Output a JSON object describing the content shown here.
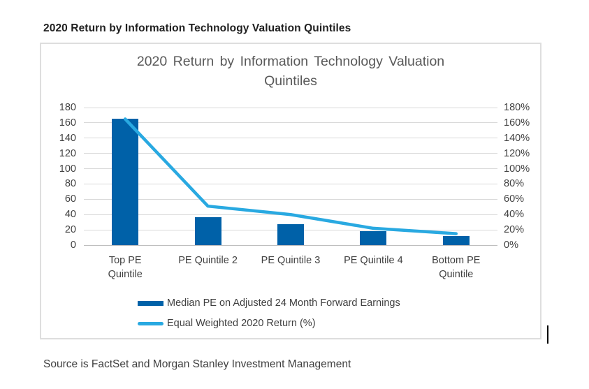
{
  "page": {
    "heading": "2020 Return by Information Technology Valuation Quintiles",
    "source_note": "Source is FactSet and Morgan Stanley Investment Management"
  },
  "chart_data": {
    "type": "bar-line-combo",
    "title": "2020 Return by Information Technology Valuation\nQuintiles",
    "categories": [
      "Top PE\nQuintile",
      "PE Quintile 2",
      "PE Quintile 3",
      "PE Quintile 4",
      "Bottom PE\nQuintile"
    ],
    "series": [
      {
        "name": "Median PE on Adjusted 24 Month Forward Earnings",
        "type": "bar",
        "color": "#0061A8",
        "values": [
          165,
          37,
          27,
          18,
          12
        ]
      },
      {
        "name": "Equal Weighted 2020 Return (%)",
        "type": "line",
        "color": "#29A9E1",
        "values": [
          165,
          51,
          40,
          22,
          15
        ]
      }
    ],
    "left_axis": {
      "min": 0,
      "max": 180,
      "step": 20,
      "tick_labels": [
        "0",
        "20",
        "40",
        "60",
        "80",
        "100",
        "120",
        "140",
        "160",
        "180"
      ]
    },
    "right_axis": {
      "min": 0,
      "max": 180,
      "step": 20,
      "tick_labels": [
        "0%",
        "20%",
        "40%",
        "60%",
        "80%",
        "100%",
        "120%",
        "140%",
        "160%",
        "180%"
      ]
    },
    "grid": true,
    "legend_position": "bottom-left",
    "colors": {
      "grid": "#D9D9D9",
      "axis_zero_line": "#BFBFBF",
      "axis_text": "#404040",
      "title_text": "#595959"
    }
  }
}
